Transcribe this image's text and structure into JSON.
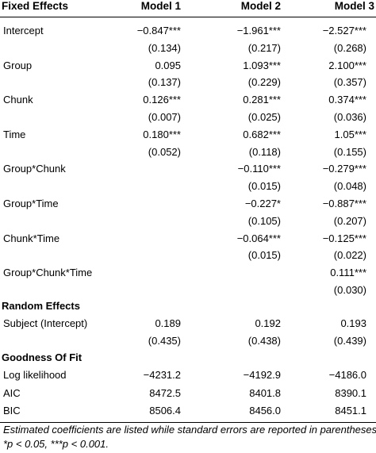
{
  "header": {
    "col0": "Fixed Effects",
    "col1": "Model 1",
    "col2": "Model 2",
    "col3": "Model 3"
  },
  "fixed_rows": [
    {
      "label": "Intercept",
      "m1": "−0.847***",
      "m2": "−1.961***",
      "m3": "−2.527***"
    },
    {
      "label": "",
      "m1": "(0.134)",
      "m2": "(0.217)",
      "m3": "(0.268)"
    },
    {
      "label": "Group",
      "m1": "0.095",
      "m2": "1.093***",
      "m3": "2.100***"
    },
    {
      "label": "",
      "m1": "(0.137)",
      "m2": "(0.229)",
      "m3": "(0.357)"
    },
    {
      "label": "Chunk",
      "m1": "0.126***",
      "m2": "0.281***",
      "m3": "0.374***"
    },
    {
      "label": "",
      "m1": "(0.007)",
      "m2": "(0.025)",
      "m3": "(0.036)"
    },
    {
      "label": "Time",
      "m1": "0.180***",
      "m2": "0.682***",
      "m3": "1.05***"
    },
    {
      "label": "",
      "m1": "(0.052)",
      "m2": "(0.118)",
      "m3": "(0.155)"
    },
    {
      "label": "Group*Chunk",
      "m1": "",
      "m2": "−0.110***",
      "m3": "−0.279***"
    },
    {
      "label": "",
      "m1": "",
      "m2": "(0.015)",
      "m3": "(0.048)"
    },
    {
      "label": "Group*Time",
      "m1": "",
      "m2": "−0.227*",
      "m3": "−0.887***"
    },
    {
      "label": "",
      "m1": "",
      "m2": "(0.105)",
      "m3": "(0.207)"
    },
    {
      "label": "Chunk*Time",
      "m1": "",
      "m2": "−0.064***",
      "m3": "−0.125***"
    },
    {
      "label": "",
      "m1": "",
      "m2": "(0.015)",
      "m3": "(0.022)"
    },
    {
      "label": "Group*Chunk*Time",
      "m1": "",
      "m2": "",
      "m3": "0.111***"
    },
    {
      "label": "",
      "m1": "",
      "m2": "",
      "m3": "(0.030)"
    }
  ],
  "random_title": "Random Effects",
  "random_rows": [
    {
      "label": "Subject (Intercept)",
      "m1": "0.189",
      "m2": "0.192",
      "m3": "0.193"
    },
    {
      "label": "",
      "m1": "(0.435)",
      "m2": "(0.438)",
      "m3": "(0.439)"
    }
  ],
  "fit_title": "Goodness Of Fit",
  "fit_rows": [
    {
      "label": "Log likelihood",
      "m1": "−4231.2",
      "m2": "−4192.9",
      "m3": "−4186.0"
    },
    {
      "label": "AIC",
      "m1": "8472.5",
      "m2": "8401.8",
      "m3": "8390.1"
    },
    {
      "label": "BIC",
      "m1": "8506.4",
      "m2": "8456.0",
      "m3": "8451.1"
    }
  ],
  "footnote": {
    "line1": "Estimated coefficients are listed while standard errors are reported in parentheses.",
    "line2": "*p < 0.05, ***p < 0.001."
  }
}
